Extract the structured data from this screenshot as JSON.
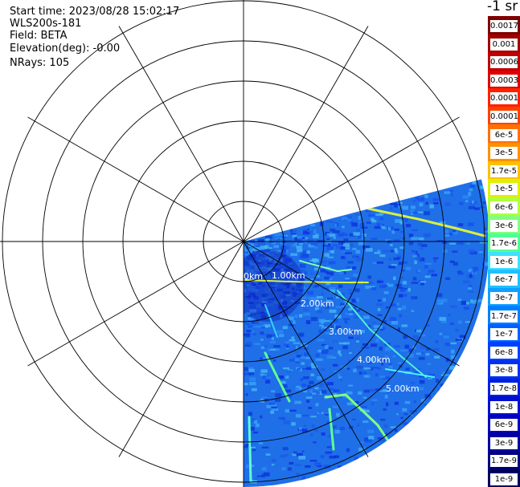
{
  "header": {
    "start_time": "Start time: 2023/08/28 15:02:17",
    "instrument": "WLS200s-181",
    "field": "Field: BETA",
    "elevation": "Elevation(deg): -0.00",
    "nrays": "NRays: 105"
  },
  "colorbar": {
    "unit_title": "-1 sr",
    "ticks": [
      "0.0017",
      "0.001",
      "0.0006",
      "0.0003",
      "0.00017",
      "0.0001",
      "6e-5",
      "3e-5",
      "1.7e-5",
      "1e-5",
      "6e-6",
      "3e-6",
      "1.7e-6",
      "1e-6",
      "6e-7",
      "3e-7",
      "1.7e-7",
      "1e-7",
      "6e-8",
      "3e-8",
      "1.7e-8",
      "1e-8",
      "6e-9",
      "3e-9",
      "1.7e-9",
      "1e-9"
    ],
    "colors": [
      "#800000",
      "#a00000",
      "#c00000",
      "#e00000",
      "#ff2000",
      "#ff4000",
      "#ff7000",
      "#ff9000",
      "#ffc000",
      "#e0f000",
      "#b0ff40",
      "#80ff80",
      "#50ff90",
      "#40e0ff",
      "#20c0ff",
      "#10a0ff",
      "#0080ff",
      "#0060ff",
      "#0040ff",
      "#0030f0",
      "#0020e0",
      "#0010d0",
      "#0000c0",
      "#0000a0",
      "#000080",
      "#000060"
    ]
  },
  "range_labels": [
    "0km",
    "1.00km",
    "2.00km",
    "3.00km",
    "4.00km",
    "5.00km"
  ]
}
